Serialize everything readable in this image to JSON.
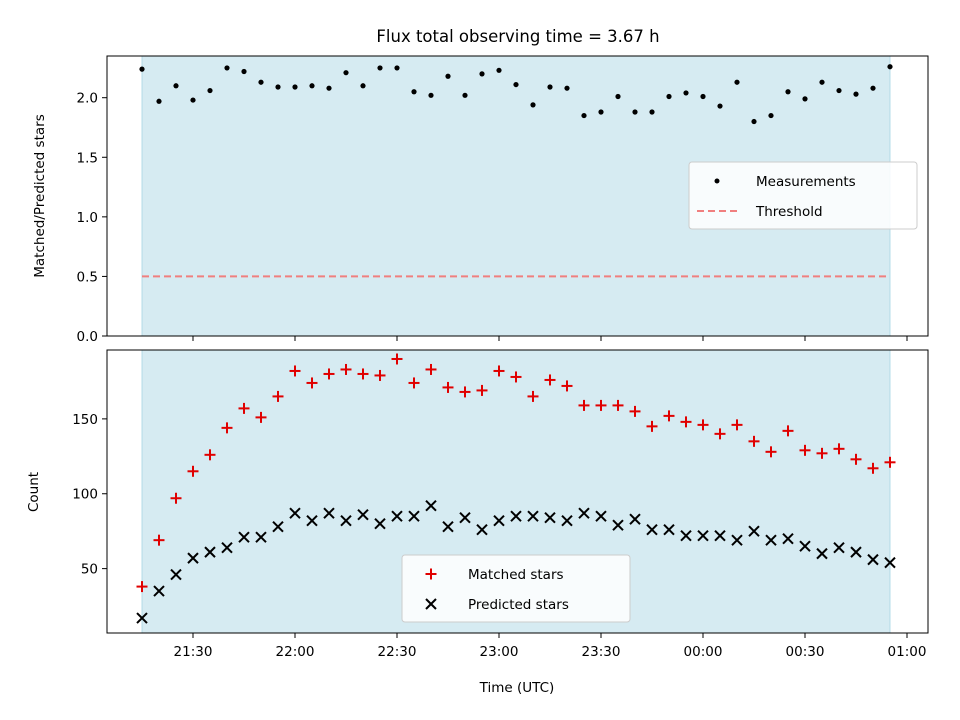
{
  "chart_data": {
    "title": "Flux total observing time = 3.67 h",
    "xlabel": "Time (UTC)",
    "x_tick_labels": [
      "21:30",
      "22:00",
      "22:30",
      "23:00",
      "23:30",
      "00:00",
      "00:30",
      "01:00"
    ],
    "colors": {
      "span": "#add8e6",
      "measurements": "#000000",
      "threshold": "#f07f7f",
      "matched": "#e00000",
      "predicted": "#000000"
    },
    "times": [
      "21:15",
      "21:20",
      "21:25",
      "21:30",
      "21:35",
      "21:40",
      "21:45",
      "21:50",
      "21:55",
      "22:00",
      "22:05",
      "22:10",
      "22:15",
      "22:20",
      "22:25",
      "22:30",
      "22:35",
      "22:40",
      "22:45",
      "22:50",
      "22:55",
      "23:00",
      "23:05",
      "23:10",
      "23:15",
      "23:20",
      "23:25",
      "23:30",
      "23:35",
      "23:40",
      "23:45",
      "23:50",
      "23:55",
      "00:00",
      "00:05",
      "00:10",
      "00:15",
      "00:20",
      "00:25",
      "00:30",
      "00:35",
      "00:40",
      "00:45",
      "00:50",
      "00:55"
    ],
    "charts": [
      {
        "type": "scatter",
        "ylabel": "Matched/Predicted stars",
        "ylim": [
          0,
          2.35
        ],
        "y_ticks": [
          0.0,
          0.5,
          1.0,
          1.5,
          2.0
        ],
        "y_tick_labels": [
          "0.0",
          "0.5",
          "1.0",
          "1.5",
          "2.0"
        ],
        "threshold": 0.5,
        "legend_position": "center-right",
        "series": [
          {
            "name": "Measurements",
            "marker": "dot",
            "values": [
              2.24,
              1.97,
              2.1,
              1.98,
              2.06,
              2.25,
              2.22,
              2.13,
              2.09,
              2.09,
              2.1,
              2.08,
              2.21,
              2.1,
              2.25,
              2.25,
              2.05,
              2.02,
              2.18,
              2.02,
              2.2,
              2.23,
              2.11,
              1.94,
              2.09,
              2.08,
              1.85,
              1.88,
              2.01,
              1.88,
              1.88,
              2.01,
              2.04,
              2.01,
              1.93,
              2.13,
              1.8,
              1.85,
              2.05,
              1.99,
              2.13,
              2.06,
              2.03,
              2.08,
              2.26
            ]
          },
          {
            "name": "Threshold",
            "marker": "dashed-line"
          }
        ]
      },
      {
        "type": "scatter",
        "ylabel": "Count",
        "ylim": [
          7,
          196
        ],
        "y_ticks": [
          50,
          100,
          150
        ],
        "y_tick_labels": [
          "50",
          "100",
          "150"
        ],
        "legend_position": "lower-center",
        "series": [
          {
            "name": "Matched stars",
            "marker": "plus",
            "values": [
              38,
              69,
              97,
              115,
              126,
              144,
              157,
              151,
              165,
              182,
              174,
              180,
              183,
              180,
              179,
              190,
              174,
              183,
              171,
              168,
              169,
              182,
              178,
              165,
              176,
              172,
              159,
              159,
              159,
              155,
              145,
              152,
              148,
              146,
              140,
              146,
              135,
              128,
              142,
              129,
              127,
              130,
              123,
              117,
              121
            ]
          },
          {
            "name": "Predicted stars",
            "marker": "x",
            "values": [
              17,
              35,
              46,
              57,
              61,
              64,
              71,
              71,
              78,
              87,
              82,
              87,
              82,
              86,
              80,
              85,
              85,
              92,
              78,
              84,
              76,
              82,
              85,
              85,
              84,
              82,
              87,
              85,
              79,
              83,
              76,
              76,
              72,
              72,
              72,
              69,
              75,
              69,
              70,
              65,
              60,
              64,
              61,
              56,
              54
            ]
          }
        ]
      }
    ]
  }
}
